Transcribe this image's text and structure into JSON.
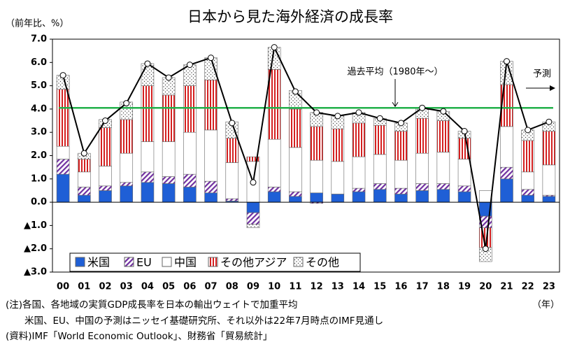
{
  "chart_data": {
    "type": "stacked_bar_line",
    "title": "日本から見た海外経済の成長率",
    "y_label": "（前年比、%）",
    "x_label": "（年）",
    "categories": [
      "00",
      "01",
      "02",
      "03",
      "04",
      "05",
      "06",
      "07",
      "08",
      "09",
      "10",
      "11",
      "12",
      "13",
      "14",
      "15",
      "16",
      "17",
      "18",
      "19",
      "20",
      "21",
      "22",
      "23"
    ],
    "series": [
      {
        "name": "米国",
        "color": "#1f5fd6",
        "pattern": "solid",
        "values": [
          1.2,
          0.3,
          0.5,
          0.7,
          0.85,
          0.8,
          0.65,
          0.4,
          0.05,
          -0.45,
          0.45,
          0.25,
          0.4,
          0.35,
          0.45,
          0.55,
          0.35,
          0.5,
          0.55,
          0.45,
          -0.6,
          1.0,
          0.3,
          0.25
        ]
      },
      {
        "name": "EU",
        "color": "#7030a0",
        "pattern": "diagonal",
        "values": [
          0.65,
          0.35,
          0.2,
          0.15,
          0.45,
          0.3,
          0.55,
          0.5,
          0.1,
          -0.5,
          0.2,
          0.2,
          -0.05,
          0,
          0.15,
          0.25,
          0.25,
          0.3,
          0.25,
          0.25,
          -0.5,
          0.5,
          0.25,
          0.05
        ]
      },
      {
        "name": "中国",
        "color": "#ffffff",
        "pattern": "solid",
        "values": [
          0.55,
          0.65,
          0.85,
          1.25,
          1.3,
          1.5,
          1.8,
          2.2,
          1.55,
          1.75,
          2.05,
          1.9,
          1.4,
          1.4,
          1.35,
          1.25,
          1.2,
          1.3,
          1.35,
          1.15,
          0.5,
          1.75,
          0.75,
          1.3
        ]
      },
      {
        "name": "その他アジア",
        "color": "#d42020",
        "pattern": "vertical",
        "values": [
          2.45,
          0.55,
          1.65,
          1.45,
          2.4,
          2.0,
          2.0,
          2.15,
          1.05,
          0.2,
          3.0,
          1.65,
          1.45,
          1.4,
          1.45,
          1.25,
          1.25,
          1.5,
          1.35,
          0.9,
          -0.85,
          1.8,
          1.35,
          1.45
        ]
      },
      {
        "name": "その他",
        "color": "#444444",
        "pattern": "dots",
        "values": [
          0.6,
          0.25,
          0.35,
          0.75,
          0.95,
          0.75,
          0.9,
          0.95,
          0.7,
          -0.15,
          0.95,
          0.8,
          0.6,
          0.55,
          0.45,
          0.3,
          0.35,
          0.45,
          0.4,
          0.3,
          -0.6,
          1.0,
          0.45,
          0.4
        ]
      }
    ],
    "line": {
      "color": "#000000",
      "values": [
        5.45,
        2.1,
        3.5,
        4.25,
        5.95,
        5.35,
        5.9,
        6.2,
        3.4,
        0.85,
        6.65,
        4.75,
        3.85,
        3.7,
        3.85,
        3.6,
        3.4,
        4.05,
        3.9,
        3.05,
        -2.0,
        6.05,
        3.1,
        3.45
      ]
    },
    "reference_line": {
      "value": 4.05,
      "label": "過去平均（1980年～）",
      "color": "#22b04a"
    },
    "forecast_label": "予測",
    "ylim": [
      -3,
      7
    ],
    "yticks": [
      {
        "value": 7,
        "label": "7.0"
      },
      {
        "value": 6,
        "label": "6.0"
      },
      {
        "value": 5,
        "label": "5.0"
      },
      {
        "value": 4,
        "label": "4.0"
      },
      {
        "value": 3,
        "label": "3.0"
      },
      {
        "value": 2,
        "label": "2.0"
      },
      {
        "value": 1,
        "label": "1.0"
      },
      {
        "value": 0,
        "label": "0.0"
      },
      {
        "value": -1,
        "label": "▲1.0"
      },
      {
        "value": -2,
        "label": "▲2.0"
      },
      {
        "value": -3,
        "label": "▲3.0"
      }
    ],
    "notes": [
      "(注)各国、各地域の実質GDP成長率を日本の輸出ウェイトで加重平均",
      "　　米国、EU、中国の予測はニッセイ基礎研究所、それ以外は22年7月時点のIMF見通し",
      "(資料)IMF「World Economic Outlook」、財務省「貿易統計」"
    ]
  }
}
